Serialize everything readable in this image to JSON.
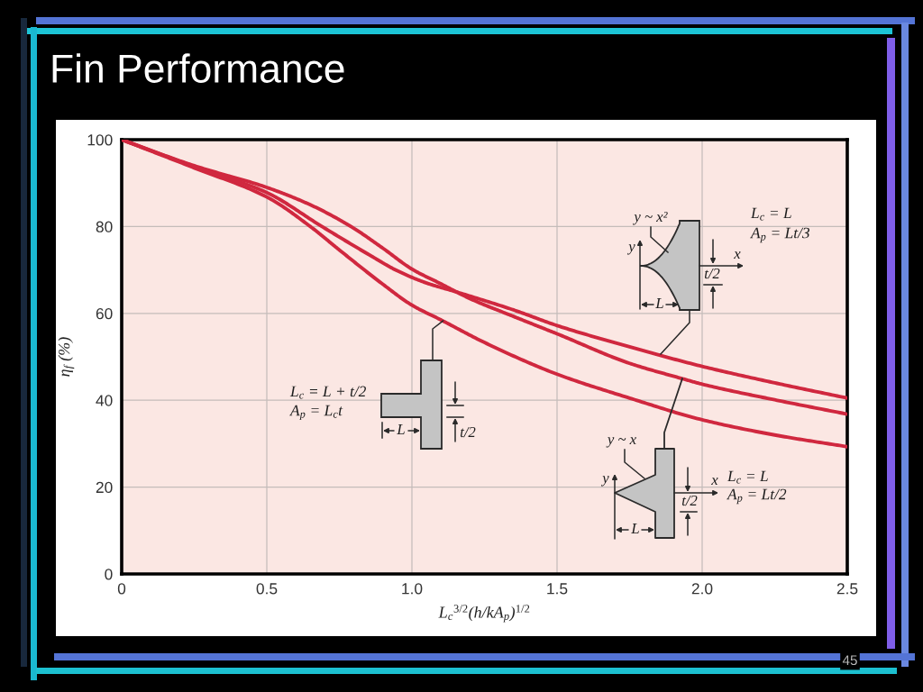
{
  "chart_data": {
    "type": "line",
    "title": "Fin Performance",
    "xlabel": "L$_{c}$$^{3/2}$(h/kA$_{p}$)$^{1/2}$",
    "ylabel": "η$_{f}$ (%)",
    "xlim": [
      0,
      2.5
    ],
    "ylim": [
      0,
      100
    ],
    "xticks": [
      0,
      0.5,
      {
        "value": 1,
        "label": "1.0"
      },
      1.5,
      {
        "value": 2,
        "label": "2.0"
      },
      2.5
    ],
    "yticks": [
      0,
      20,
      40,
      60,
      80,
      100
    ],
    "grid": true,
    "series": [
      {
        "color": "#d0283f",
        "x": [
          0,
          0.25,
          0.5,
          0.65,
          0.75,
          0.9,
          1.0,
          1.1,
          1.25,
          1.5,
          1.75,
          2.0,
          2.25,
          2.5
        ],
        "values": [
          100,
          93.5,
          86.8,
          80,
          74.6,
          66.7,
          61.9,
          58.5,
          53.3,
          46,
          40.5,
          35.5,
          32,
          29.3
        ]
      },
      {
        "color": "#d0283f",
        "x": [
          0,
          0.25,
          0.5,
          0.65,
          0.79,
          0.9,
          1.0,
          1.1,
          1.2,
          1.35,
          1.5,
          1.75,
          1.93,
          2.0,
          2.25,
          2.5
        ],
        "values": [
          100,
          94,
          89,
          85,
          80,
          75,
          70.2,
          66.8,
          63.4,
          59.3,
          55.3,
          48.5,
          45,
          43.7,
          40.1,
          36.8
        ]
      },
      {
        "color": "#d0283f",
        "x": [
          0,
          0.25,
          0.5,
          0.69,
          0.85,
          0.95,
          1.05,
          1.15,
          1.35,
          1.5,
          1.75,
          2.0,
          2.25,
          2.5
        ],
        "values": [
          100,
          93.8,
          87.8,
          80,
          73.6,
          69.8,
          67,
          65,
          60.8,
          57.2,
          52.3,
          47.8,
          44,
          40.5
        ]
      }
    ],
    "annotations": [
      "L$_{c}$ = L + t/2",
      "A$_{p}$ = L$_{c}$t",
      "L",
      "t/2",
      "y ~ x²",
      "y",
      "x",
      "t/2",
      "L",
      "L$_{c}$ = L",
      "A$_{p}$ = Lt/3",
      "y ~ x",
      "y",
      "x",
      "t/2",
      "L",
      "L$_{c}$ = L",
      "A$_{p}$ = Lt/2",
      "45"
    ]
  }
}
